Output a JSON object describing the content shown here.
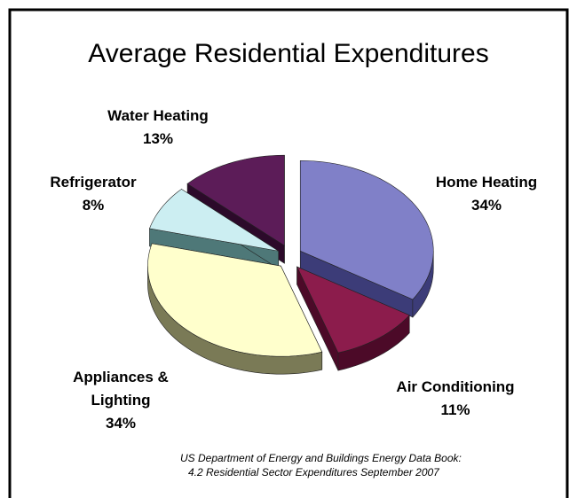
{
  "chart_data": {
    "type": "pie3d",
    "title": "Average Residential Expenditures",
    "categories": [
      "Home Heating",
      "Air Conditioning",
      "Appliances & Lighting",
      "Refrigerator",
      "Water Heating"
    ],
    "values": [
      34,
      11,
      34,
      8,
      13
    ],
    "value_labels": [
      "34%",
      "11%",
      "34%",
      "8%",
      "13%"
    ],
    "colors": [
      "#8080c8",
      "#8c1c4c",
      "#ffffcc",
      "#cceef2",
      "#5c1c58"
    ],
    "side_colors": [
      "#3c3c78",
      "#4c0a28",
      "#7a7a56",
      "#4e7878",
      "#2c0a2a"
    ],
    "source": [
      "US Department of Energy and Buildings Energy Data Book:",
      "4.2 Residential Sector Expenditures September 2007"
    ]
  }
}
